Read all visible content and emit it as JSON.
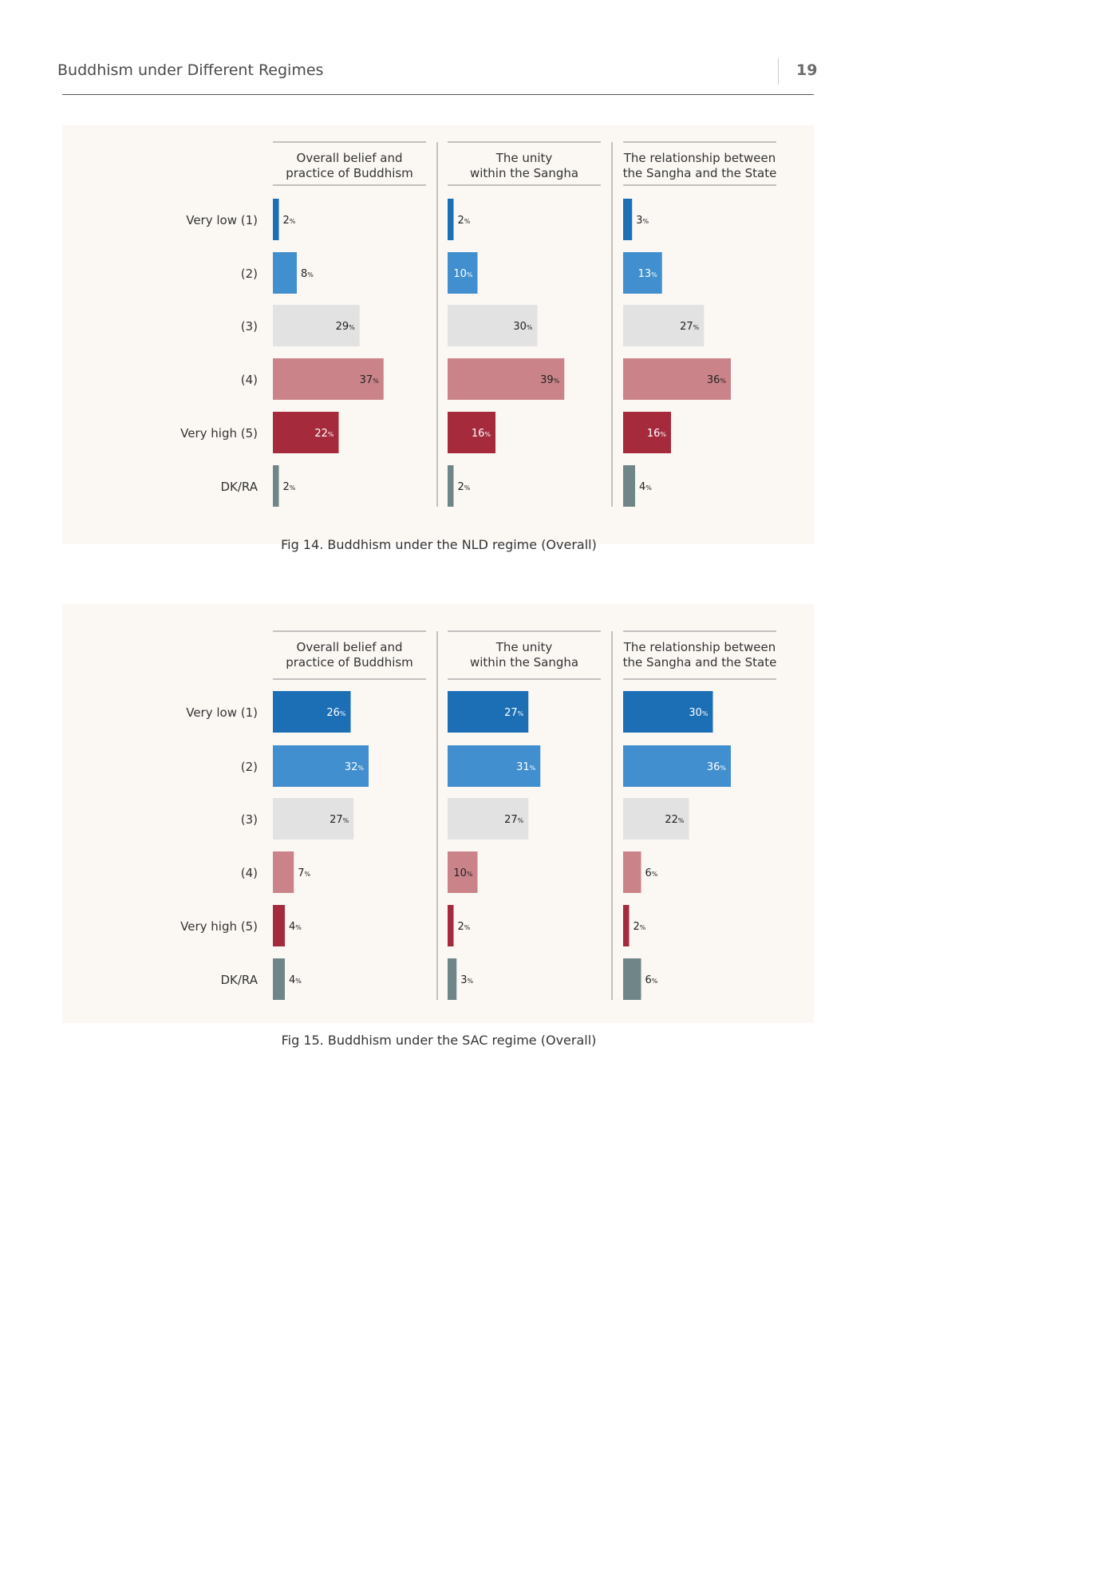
{
  "header": {
    "title": "Buddhism under Different Regimes",
    "page_number": "19"
  },
  "colors": {
    "very_low": "#1c6fb5",
    "level_2": "#418fce",
    "level_3": "#e2e2e2",
    "level_4": "#c98389",
    "very_high": "#a52a3c",
    "dk_ra": "#6f8587",
    "panel_bg": "#fbf8f4"
  },
  "chart_data": [
    {
      "type": "bar",
      "orientation": "horizontal",
      "title": "Fig 14. Buddhism under the NLD regime (Overall)",
      "categories": [
        "Very low (1)",
        "(2)",
        "(3)",
        "(4)",
        "Very high (5)",
        "DK/RA"
      ],
      "unit": "%",
      "panels": [
        {
          "name": "Overall belief and\npractice of Buddhism",
          "values": [
            2,
            8,
            29,
            37,
            22,
            2
          ]
        },
        {
          "name": "The unity\nwithin the Sangha",
          "values": [
            2,
            10,
            30,
            39,
            16,
            2
          ]
        },
        {
          "name": "The relationship between\nthe Sangha and the State",
          "values": [
            3,
            13,
            27,
            36,
            16,
            4
          ]
        }
      ]
    },
    {
      "type": "bar",
      "orientation": "horizontal",
      "title": "Fig 15. Buddhism under the SAC regime (Overall)",
      "categories": [
        "Very low (1)",
        "(2)",
        "(3)",
        "(4)",
        "Very high (5)",
        "DK/RA"
      ],
      "unit": "%",
      "panels": [
        {
          "name": "Overall belief and\npractice of Buddhism",
          "values": [
            26,
            32,
            27,
            7,
            4,
            4
          ]
        },
        {
          "name": "The unity\nwithin the Sangha",
          "values": [
            27,
            31,
            27,
            10,
            2,
            3
          ]
        },
        {
          "name": "The relationship between\nthe Sangha and the State",
          "values": [
            30,
            36,
            22,
            6,
            2,
            6
          ]
        }
      ]
    }
  ]
}
